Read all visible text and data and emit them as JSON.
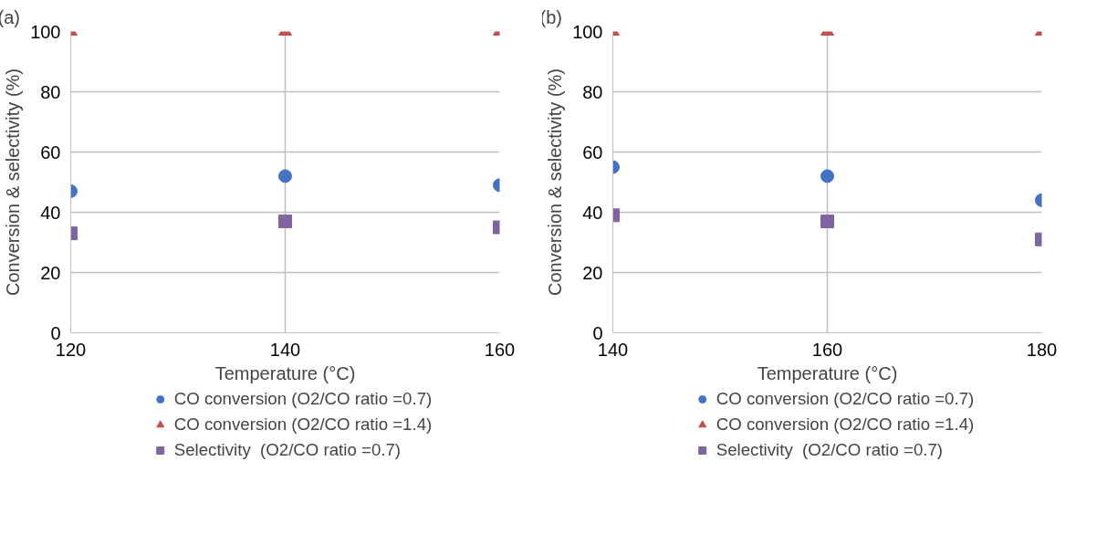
{
  "chart_data": [
    {
      "type": "scatter",
      "annotations": [
        "(a)"
      ],
      "xlabel": "Temperature (°C)",
      "ylabel": "Conversion & selectivity (%)",
      "x": [
        120,
        140,
        160
      ],
      "xlim": [
        120,
        160
      ],
      "xticks": [
        120,
        140,
        160
      ],
      "ylim": [
        0,
        100
      ],
      "yticks": [
        0,
        20,
        40,
        60,
        80,
        100
      ],
      "grid": true,
      "legend": "bottom",
      "series": [
        {
          "name": "CO conversion (O2/CO ratio =0.7)",
          "color": "#4472c4",
          "marker": "circle",
          "values": [
            47,
            52,
            49
          ]
        },
        {
          "name": "CO conversion (O2/CO ratio =1.4)",
          "color": "#c0504d",
          "marker": "triangle",
          "values": [
            100,
            100,
            100
          ]
        },
        {
          "name": "Selectivity  (O2/CO ratio =0.7)",
          "color": "#8064a2",
          "marker": "square",
          "values": [
            33,
            37,
            35
          ]
        }
      ]
    },
    {
      "type": "scatter",
      "annotations": [
        "(b)"
      ],
      "xlabel": "Temperature (°C)",
      "ylabel": "Conversion & selectivity (%)",
      "x": [
        140,
        160,
        180
      ],
      "xlim": [
        140,
        180
      ],
      "xticks": [
        140,
        160,
        180
      ],
      "ylim": [
        0,
        100
      ],
      "yticks": [
        0,
        20,
        40,
        60,
        80,
        100
      ],
      "grid": true,
      "legend": "bottom",
      "series": [
        {
          "name": "CO conversion (O2/CO ratio =0.7)",
          "color": "#4472c4",
          "marker": "circle",
          "values": [
            55,
            52,
            44
          ]
        },
        {
          "name": "CO conversion (O2/CO ratio =1.4)",
          "color": "#c0504d",
          "marker": "triangle",
          "values": [
            100,
            100,
            100
          ]
        },
        {
          "name": "Selectivity  (O2/CO ratio =0.7)",
          "color": "#8064a2",
          "marker": "square",
          "values": [
            39,
            37,
            31
          ]
        }
      ]
    }
  ]
}
